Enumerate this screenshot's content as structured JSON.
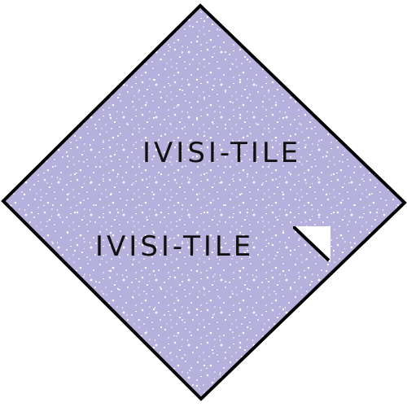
{
  "labels": {
    "primary": "IVISI-TILE",
    "secondary": "IVISI-TILE"
  },
  "colors": {
    "tile_fill": "#b6b1dc",
    "tile_border": "#000000",
    "speckle": "#ffffff",
    "text": "#111111"
  }
}
